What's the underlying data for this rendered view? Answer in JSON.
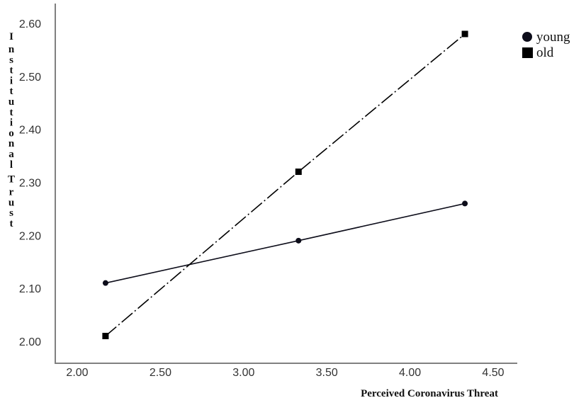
{
  "chart_data": {
    "type": "line",
    "title": "",
    "xlabel": "Perceived Coronavirus Threat",
    "ylabel": "Institutional Trust",
    "xlim": [
      1.86,
      4.64
    ],
    "ylim": [
      1.96,
      2.64
    ],
    "x_ticks": [
      "2.00",
      "2.50",
      "3.00",
      "3.50",
      "4.00",
      "4.50"
    ],
    "y_ticks": [
      "2.00",
      "2.10",
      "2.20",
      "2.30",
      "2.40",
      "2.50",
      "2.60"
    ],
    "grid": false,
    "legend_position": "top-right, outside plot",
    "x": [
      2.17,
      3.33,
      4.33
    ],
    "series": [
      {
        "name": "young",
        "values": [
          2.11,
          2.19,
          2.26
        ],
        "marker": "circle",
        "line_style": "solid",
        "color": "#0d0d1a"
      },
      {
        "name": "old",
        "values": [
          2.01,
          2.32,
          2.58
        ],
        "marker": "square",
        "line_style": "dash-dot",
        "color": "#000000"
      }
    ]
  },
  "legend": {
    "items": [
      {
        "label": "young",
        "icon": "circle-marker-icon"
      },
      {
        "label": "old",
        "icon": "square-marker-icon"
      }
    ]
  },
  "axes": {
    "x_title": "Perceived Coronavirus Threat",
    "y_title_letters": [
      "I",
      "n",
      "s",
      "t",
      "i",
      "t",
      "u",
      "t",
      "i",
      "o",
      "n",
      "a",
      "l",
      "",
      "T",
      "r",
      "u",
      "s",
      "t"
    ]
  },
  "colors": {
    "axis": "#808080",
    "young": "#0d0d1a",
    "old": "#000000"
  }
}
